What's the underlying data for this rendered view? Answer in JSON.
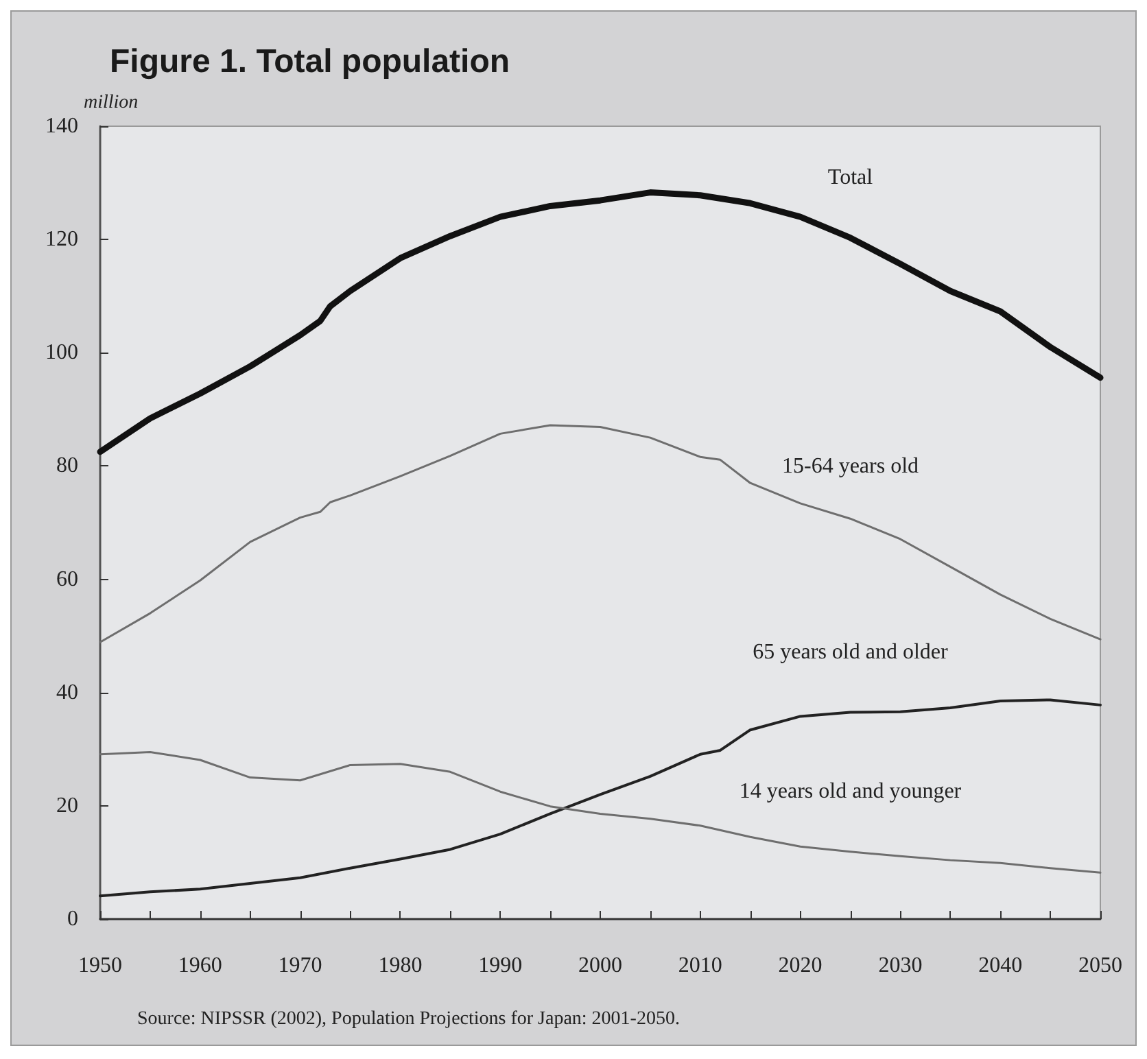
{
  "chart_data": {
    "type": "line",
    "title": "Figure 1. Total population",
    "ylabel": "million",
    "xlim": [
      1950,
      2050
    ],
    "ylim": [
      0,
      140
    ],
    "xticks": [
      1950,
      {
        "value": 1955,
        "label": null
      },
      1960,
      {
        "value": 1965,
        "label": null
      },
      1970,
      {
        "value": 1975,
        "label": null
      },
      1980,
      {
        "value": 1985,
        "label": null
      },
      1990,
      {
        "value": 1995,
        "label": null
      },
      2000,
      {
        "value": 2005,
        "label": null
      },
      2010,
      {
        "value": 2015,
        "label": null
      },
      2020,
      {
        "value": 2025,
        "label": null
      },
      2030,
      {
        "value": 2035,
        "label": null
      },
      2040,
      {
        "value": 2045,
        "label": null
      },
      2050
    ],
    "yticks": [
      0,
      20,
      40,
      60,
      80,
      100,
      120,
      140
    ],
    "grid": false,
    "marker": "none",
    "line_style": "solid",
    "series": [
      {
        "name": "Total",
        "color": "#111111",
        "x": [
          1950,
          1955,
          1960,
          1965,
          1970,
          1972,
          1973,
          1975,
          1980,
          1985,
          1990,
          1995,
          2000,
          2005,
          2010,
          2015,
          2020,
          2025,
          2030,
          2035,
          2040,
          2045,
          2050
        ],
        "values": [
          82.5,
          88.4,
          92.8,
          97.6,
          103.1,
          105.6,
          108.2,
          110.9,
          116.7,
          120.6,
          124,
          125.9,
          126.9,
          128.3,
          127.8,
          126.4,
          124,
          120.3,
          115.7,
          110.9,
          107.3,
          101,
          95.6
        ]
      },
      {
        "name": "15-64 years old",
        "color": "#6e6e6e",
        "x": [
          1950,
          1955,
          1960,
          1965,
          1970,
          1972,
          1973,
          1975,
          1980,
          1985,
          1990,
          1995,
          2000,
          2005,
          2010,
          2012,
          2015,
          2020,
          2025,
          2030,
          2035,
          2040,
          2045,
          2050
        ],
        "values": [
          48.9,
          54,
          59.8,
          66.6,
          70.9,
          71.9,
          73.6,
          74.8,
          78.2,
          81.8,
          85.7,
          87.2,
          86.9,
          85,
          81.6,
          81.1,
          77,
          73.4,
          70.7,
          67.1,
          62.2,
          57.3,
          53,
          49.4
        ]
      },
      {
        "name": "65 years old and older",
        "color": "#222222",
        "x": [
          1950,
          1955,
          1960,
          1965,
          1970,
          1975,
          1980,
          1985,
          1990,
          1995,
          2000,
          2005,
          2010,
          2012,
          2015,
          2020,
          2025,
          2030,
          2035,
          2040,
          2045,
          2050
        ],
        "values": [
          4.1,
          4.8,
          5.3,
          6.3,
          7.3,
          9,
          10.6,
          12.3,
          15,
          18.6,
          22,
          25.2,
          29.1,
          29.8,
          33.4,
          35.8,
          36.5,
          36.6,
          37.3,
          38.5,
          38.7,
          37.8
        ]
      },
      {
        "name": "14 years old and younger",
        "color": "#6e6e6e",
        "x": [
          1950,
          1955,
          1960,
          1965,
          1970,
          1975,
          1980,
          1985,
          1990,
          1995,
          2000,
          2005,
          2010,
          2015,
          2020,
          2025,
          2030,
          2035,
          2040,
          2045,
          2050
        ],
        "values": [
          29.1,
          29.5,
          28.1,
          25,
          24.5,
          27.2,
          27.4,
          26,
          22.5,
          19.9,
          18.6,
          17.7,
          16.5,
          14.5,
          12.8,
          11.9,
          11.1,
          10.4,
          9.9,
          9,
          8.2
        ]
      }
    ],
    "annotations": [
      "Source: NIPSSR (2002), Population Projections for Japan: 2001-2050."
    ]
  }
}
